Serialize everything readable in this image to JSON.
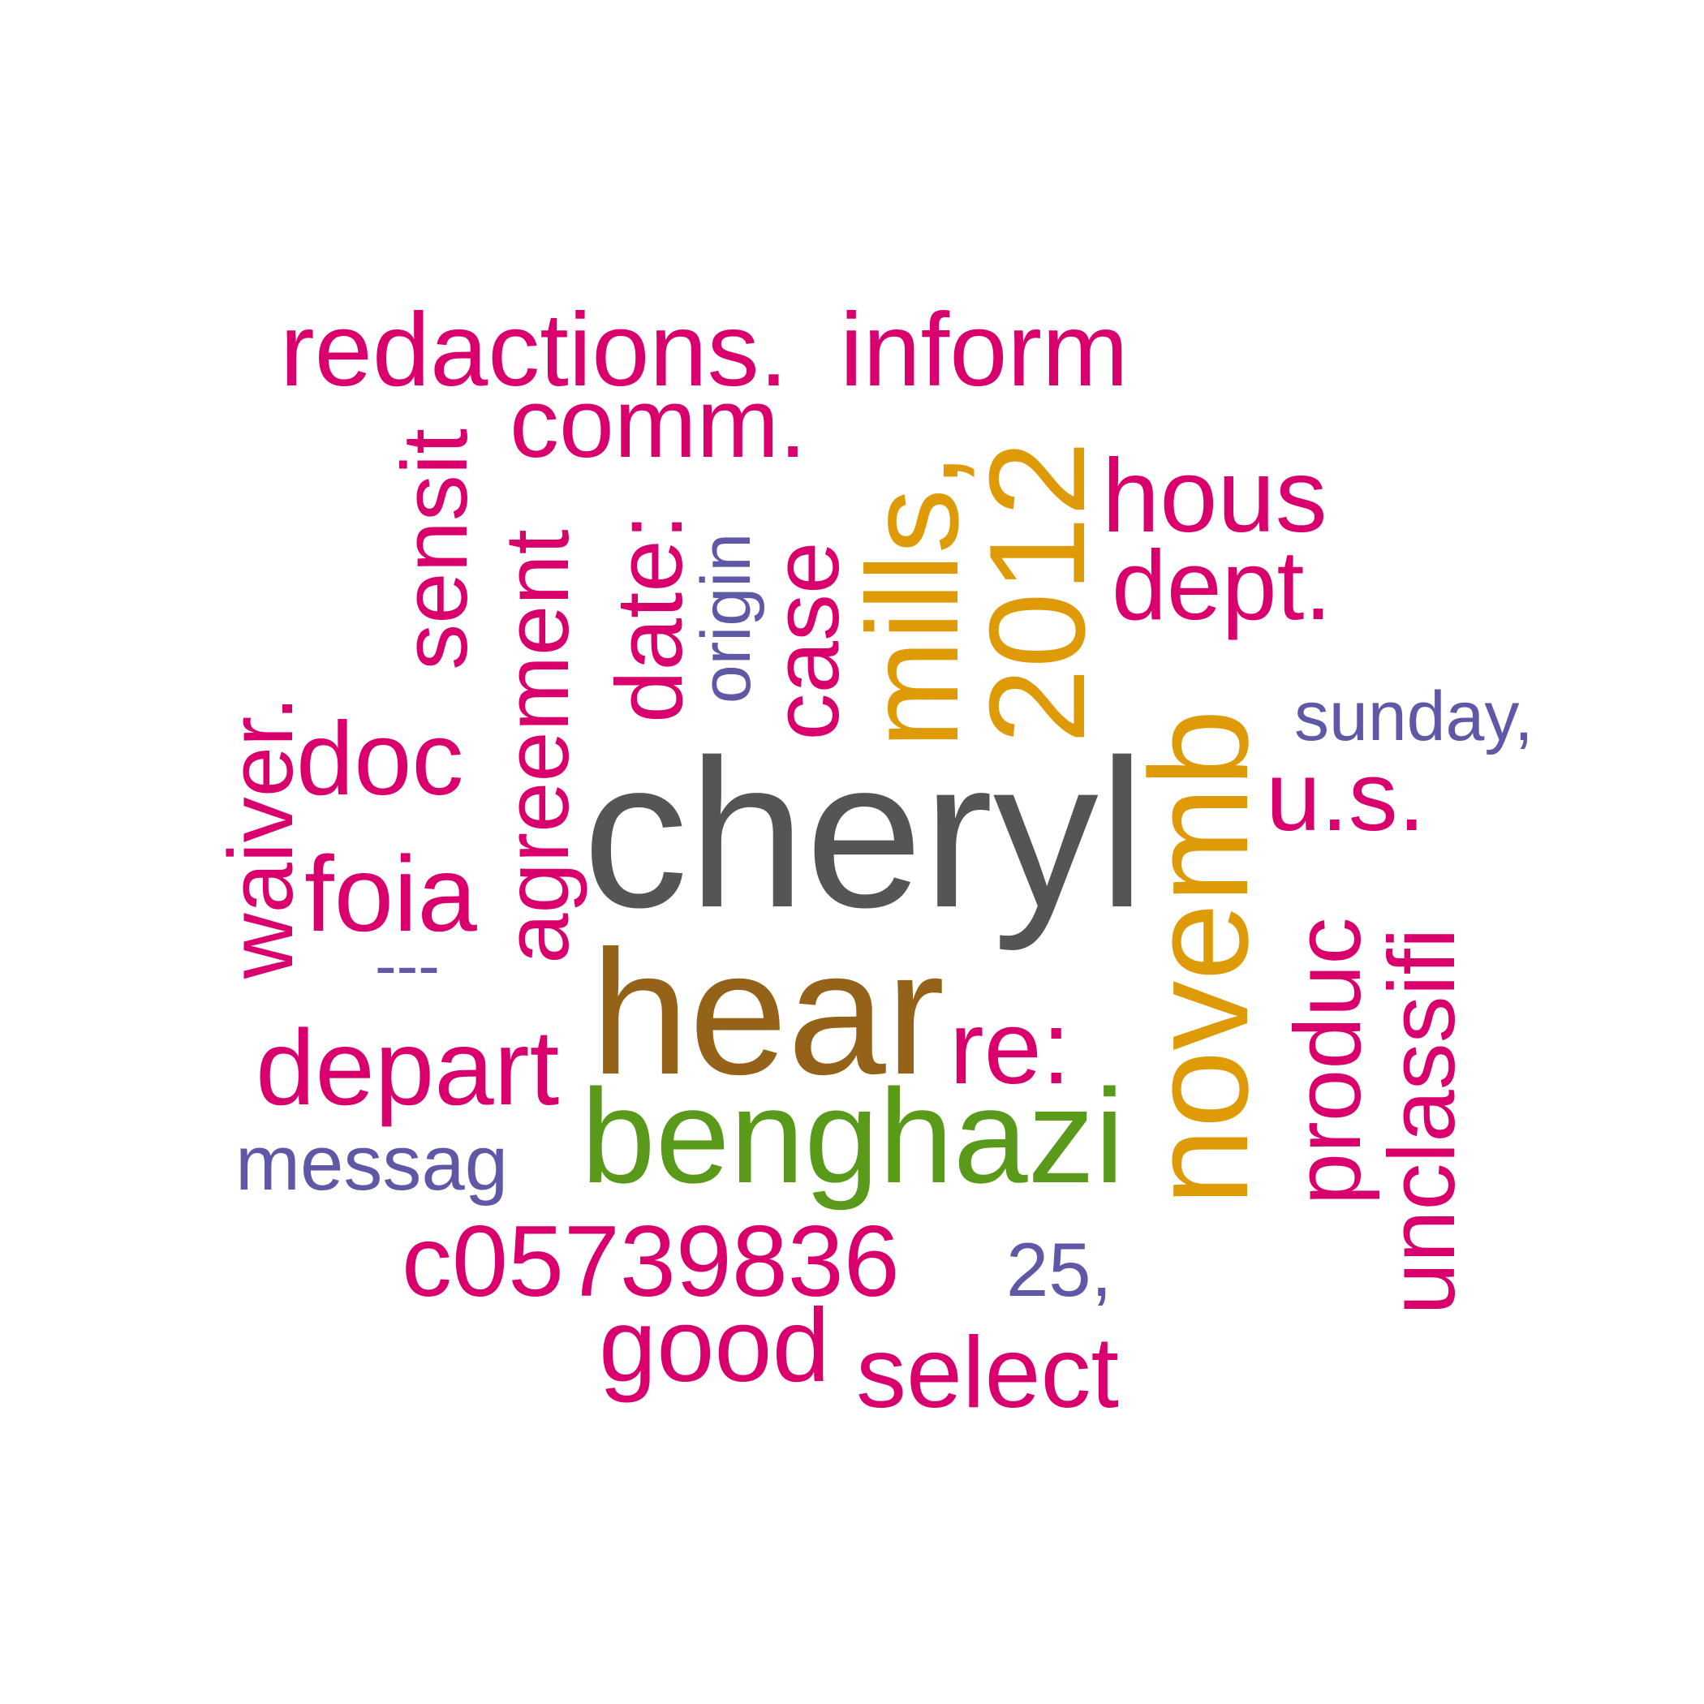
{
  "colors": {
    "pink": "#D9006E",
    "purple": "#5E58A6",
    "gold": "#DF9B07",
    "grey": "#555555",
    "brown": "#946218",
    "green": "#5A9A1A"
  },
  "words": {
    "cheryl": "cheryl",
    "hear": "hear",
    "benghazi": "benghazi",
    "novemb": "novemb",
    "mills": "mills,",
    "year": "2012",
    "redactions": "redactions.",
    "inform": "inform",
    "comm": "comm.",
    "sensit": "sensit",
    "agreement": "agreement",
    "date": "date:",
    "origin": "origin",
    "case": "case",
    "hous": "hous",
    "dept": "dept.",
    "sunday": "sunday,",
    "us": "u.s.",
    "waiver": "waiver.",
    "doc": "doc",
    "foia": "foia",
    "dashes": "---",
    "re": "re:",
    "depart": "depart",
    "messag": "messag",
    "produc": "produc",
    "unclassifi": "unclassifi",
    "c05739836": "c05739836",
    "num25": "25,",
    "good": "good",
    "select": "select"
  }
}
